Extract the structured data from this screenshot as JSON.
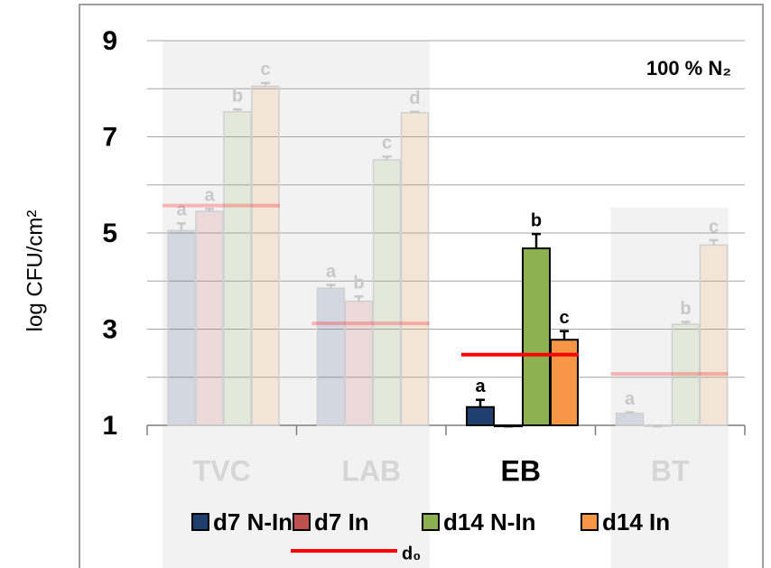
{
  "chart_data": {
    "type": "bar",
    "annotation": "100 % N₂",
    "y_label": "log CFU/cm²",
    "categories": [
      "TVC",
      "LAB",
      "EB",
      "BT"
    ],
    "highlight": "EB",
    "ylim": [
      1,
      9
    ],
    "yticks": [
      1,
      3,
      5,
      7,
      9
    ],
    "minor_yticks": [
      2,
      4,
      6,
      8
    ],
    "grid": true,
    "series": [
      {
        "name": "d7 N-In",
        "color": "#1f3f6f",
        "values": [
          5.05,
          3.85,
          1.38,
          1.25
        ],
        "errors": [
          0.15,
          0.07,
          0.15,
          0.02
        ],
        "letters": [
          "a",
          "a",
          "a",
          "a"
        ]
      },
      {
        "name": "d7 In",
        "color": "#c0504d",
        "values": [
          5.45,
          3.58,
          0.98,
          0.98
        ],
        "errors": [
          0.05,
          0.1,
          0,
          0
        ],
        "letters": [
          "a",
          "b",
          null,
          null
        ]
      },
      {
        "name": "d14 N-In",
        "color": "#8db051",
        "values": [
          7.52,
          6.52,
          4.68,
          3.1
        ],
        "errors": [
          0.05,
          0.07,
          0.3,
          0.05
        ],
        "letters": [
          "b",
          "c",
          "b",
          "b"
        ]
      },
      {
        "name": "d14 In",
        "color": "#f79646",
        "values": [
          8.05,
          7.5,
          2.78,
          4.75
        ],
        "errors": [
          0.07,
          0.02,
          0.18,
          0.1
        ],
        "letters": [
          "c",
          "d",
          "c",
          "c"
        ]
      }
    ],
    "reference": {
      "name": "d₀",
      "color": "#ff0000",
      "values": [
        5.57,
        3.12,
        2.47,
        2.07
      ]
    }
  }
}
